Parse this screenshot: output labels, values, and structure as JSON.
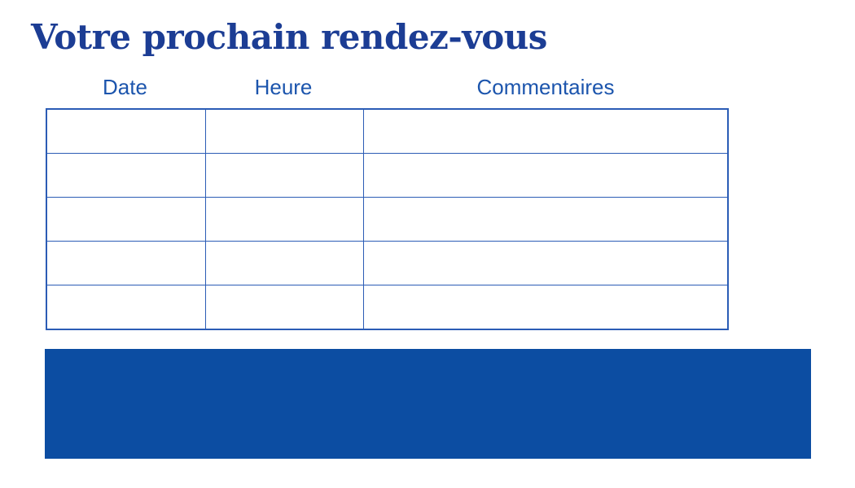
{
  "page": {
    "title": "Votre prochain rendez-vous"
  },
  "table": {
    "headers": [
      "Date",
      "Heure",
      "Commentaires"
    ],
    "rows": [
      [
        "",
        "",
        ""
      ],
      [
        "",
        "",
        ""
      ],
      [
        "",
        "",
        ""
      ],
      [
        "",
        "",
        ""
      ],
      [
        "",
        "",
        ""
      ]
    ]
  },
  "colors": {
    "title_text": "#1c3d94",
    "header_text": "#1c55ad",
    "table_border": "#2b5cb5",
    "banner_background": "#0c4da2"
  }
}
